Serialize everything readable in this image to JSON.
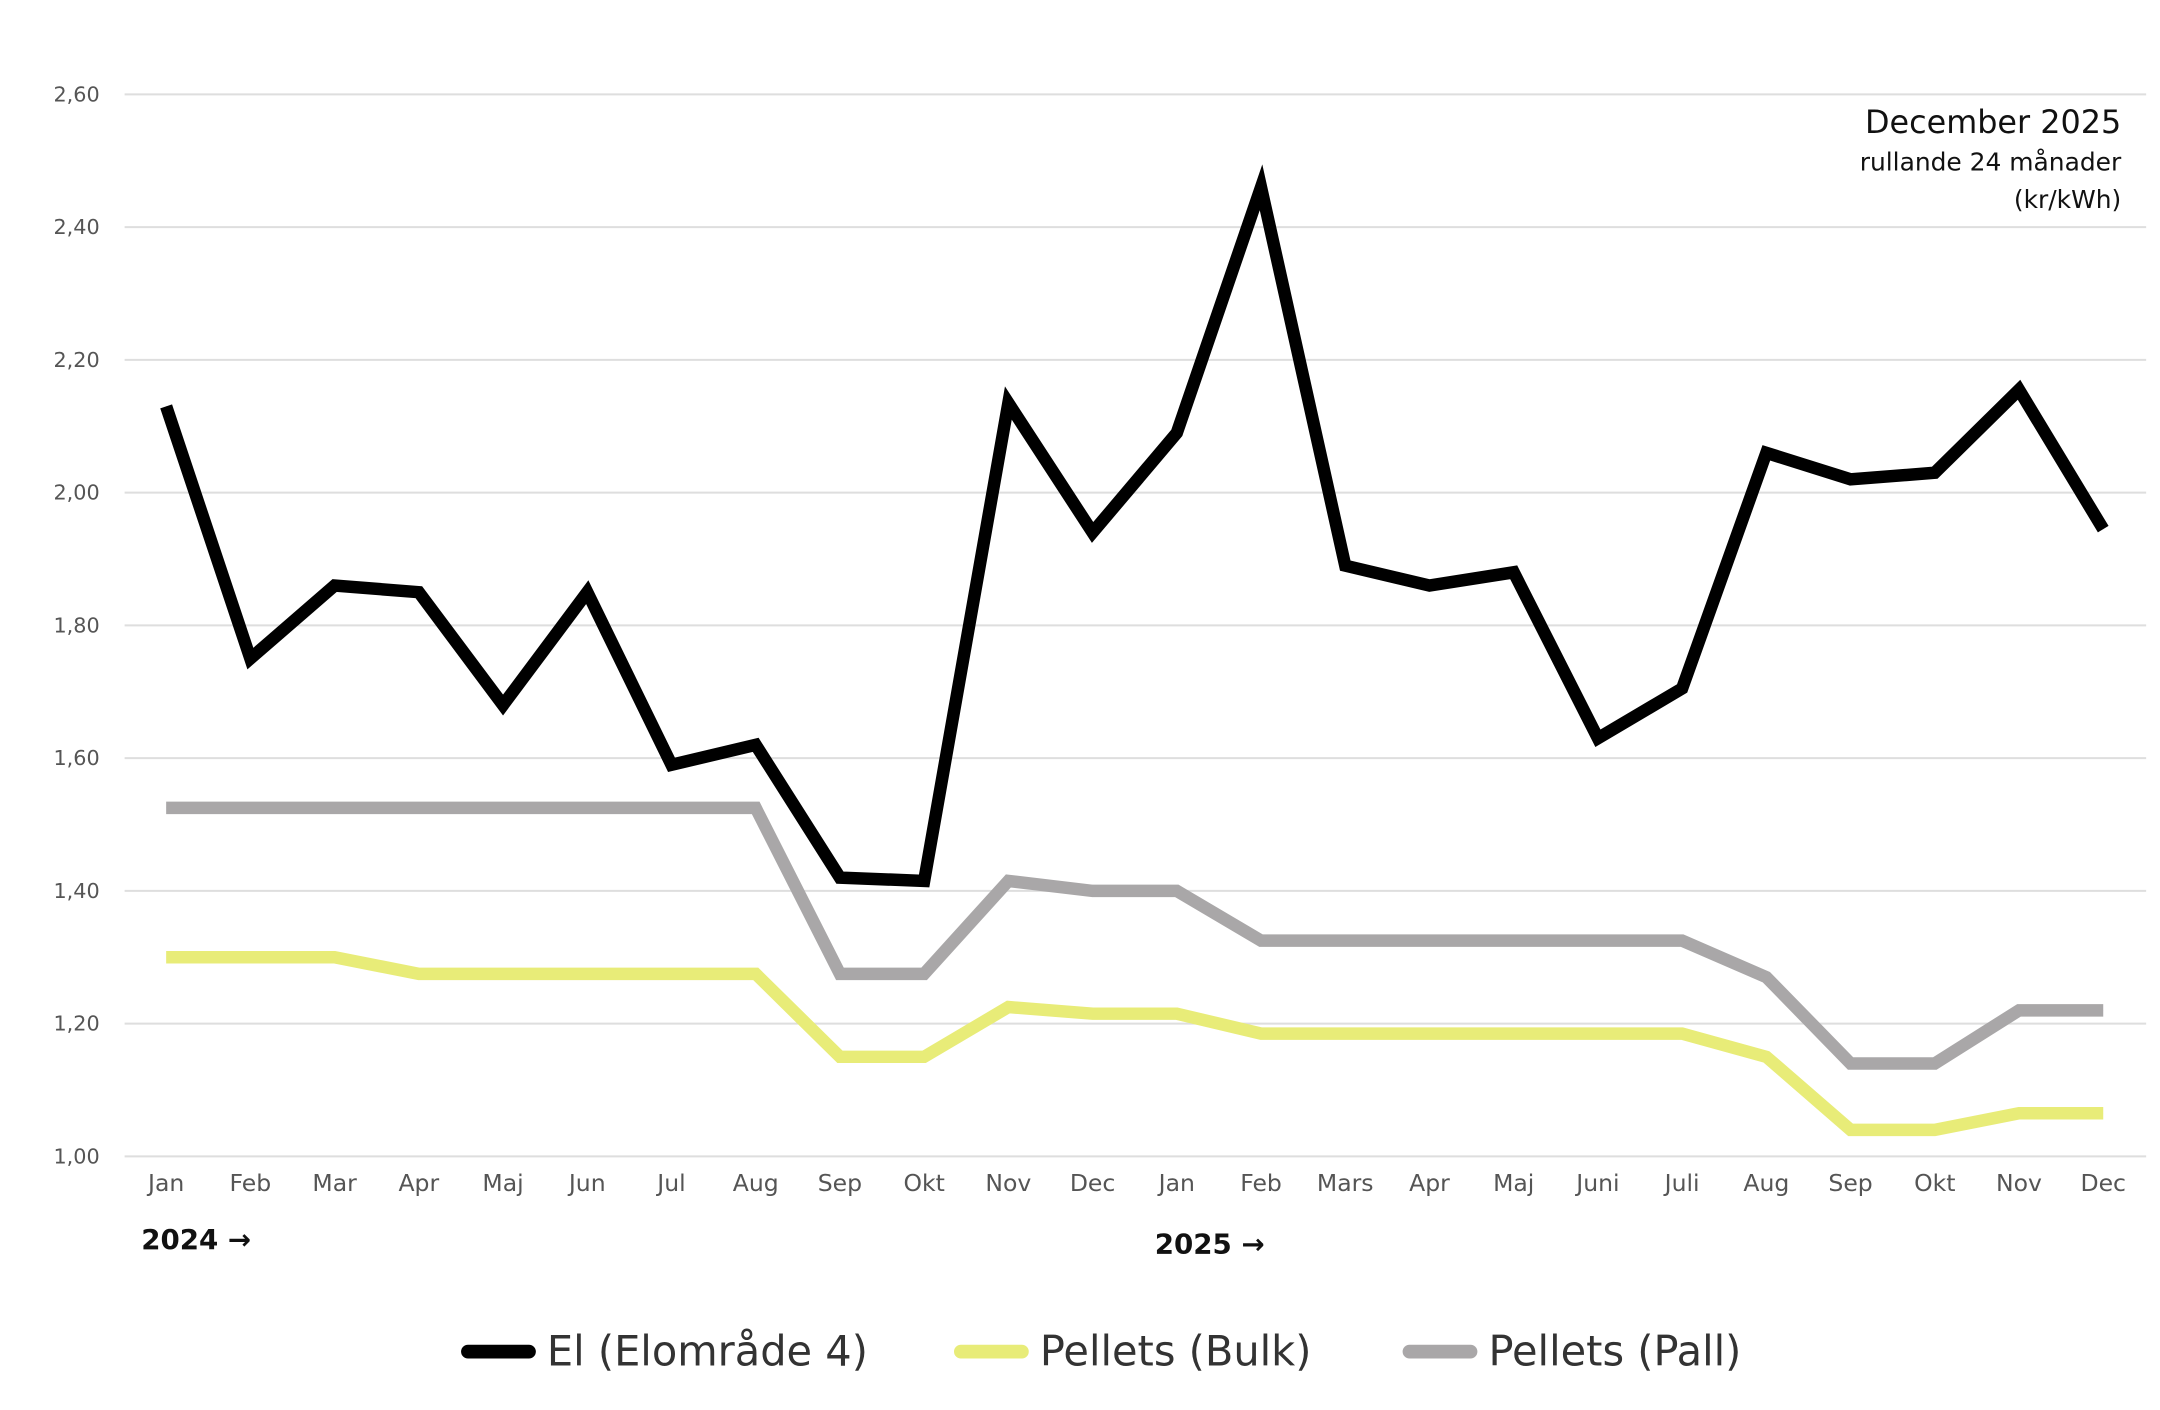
{
  "chart_data": {
    "type": "line",
    "title": "December 2025",
    "subtitle": "rullande 24 månader",
    "unit": "(kr/kWh)",
    "categories": [
      "Jan",
      "Feb",
      "Mar",
      "Apr",
      "Maj",
      "Jun",
      "Jul",
      "Aug",
      "Sep",
      "Okt",
      "Nov",
      "Dec",
      "Jan",
      "Feb",
      "Mars",
      "Apr",
      "Maj",
      "Juni",
      "Juli",
      "Aug",
      "Sep",
      "Okt",
      "Nov",
      "Dec"
    ],
    "year_labels": [
      "2024 →",
      "2025 →"
    ],
    "ylim": [
      1.0,
      2.6
    ],
    "yticks": [
      "1,00",
      "1,20",
      "1,40",
      "1,60",
      "1,80",
      "2,00",
      "2,20",
      "2,40",
      "2,60"
    ],
    "grid": true,
    "legend_position": "bottom",
    "series": [
      {
        "name": "El (Elområde 4)",
        "color": "#000000",
        "values": [
          2.13,
          1.75,
          1.86,
          1.85,
          1.68,
          1.85,
          1.59,
          1.62,
          1.42,
          1.415,
          2.135,
          1.94,
          2.09,
          2.46,
          1.89,
          1.86,
          1.88,
          1.63,
          1.705,
          2.06,
          2.02,
          2.03,
          2.155,
          1.945
        ]
      },
      {
        "name": "Pellets (Bulk)",
        "color": "#e8ec78",
        "values": [
          1.3,
          1.3,
          1.3,
          1.275,
          1.275,
          1.275,
          1.275,
          1.275,
          1.15,
          1.15,
          1.225,
          1.215,
          1.215,
          1.185,
          1.185,
          1.185,
          1.185,
          1.185,
          1.185,
          1.15,
          1.04,
          1.04,
          1.065,
          1.065
        ]
      },
      {
        "name": "Pellets (Pall)",
        "color": "#a9a7a8",
        "values": [
          1.525,
          1.525,
          1.525,
          1.525,
          1.525,
          1.525,
          1.525,
          1.525,
          1.275,
          1.275,
          1.415,
          1.4,
          1.4,
          1.325,
          1.325,
          1.325,
          1.325,
          1.325,
          1.325,
          1.27,
          1.14,
          1.14,
          1.22,
          1.22
        ]
      }
    ]
  }
}
